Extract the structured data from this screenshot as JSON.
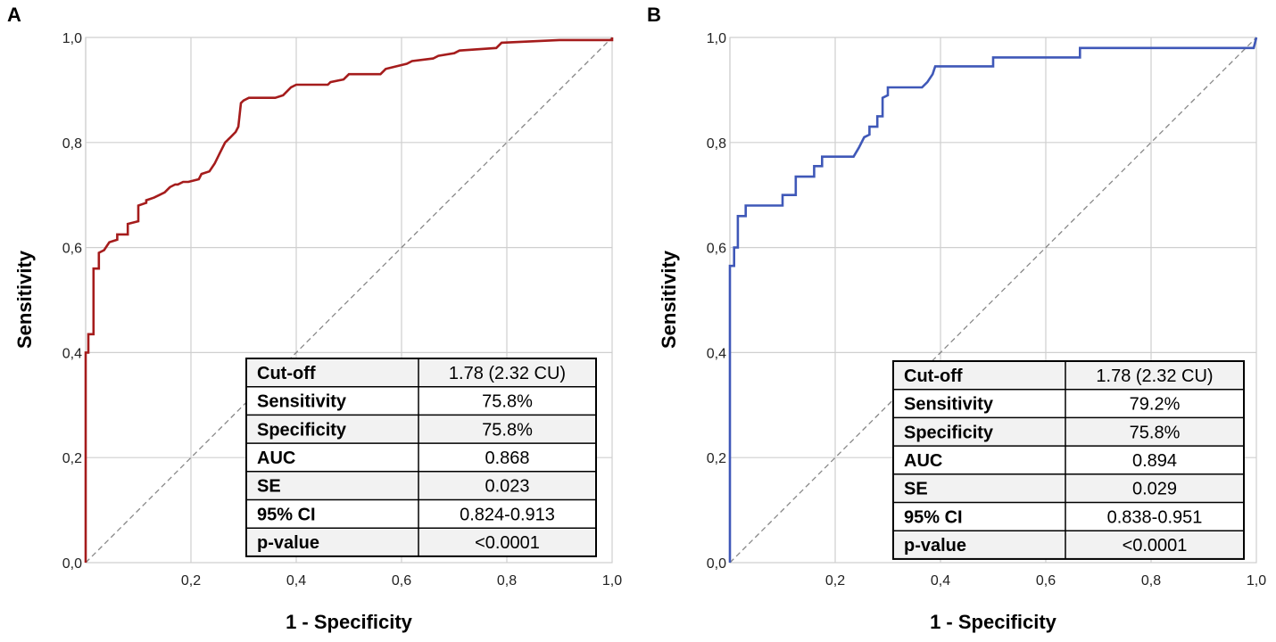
{
  "chart_data": [
    {
      "panel_label": "A",
      "type": "line",
      "xlabel": "1 - Specificity",
      "ylabel": "Sensitivity",
      "xlim": [
        0,
        1
      ],
      "ylim": [
        0,
        1
      ],
      "x_ticks": [
        "0,2",
        "0,4",
        "0,6",
        "0,8",
        "1,0"
      ],
      "y_ticks": [
        "0,0",
        "0,2",
        "0,4",
        "0,6",
        "0,8",
        "1,0"
      ],
      "grid": true,
      "reference_line": {
        "name": "reference",
        "style": "dashed",
        "color": "#888888",
        "x": [
          0,
          1
        ],
        "y": [
          0,
          1
        ]
      },
      "series": [
        {
          "name": "ROC curve",
          "color": "#a51c1c",
          "x": [
            0,
            0,
            0.005,
            0.005,
            0.015,
            0.015,
            0.025,
            0.025,
            0.035,
            0.045,
            0.06,
            0.06,
            0.08,
            0.08,
            0.1,
            0.1,
            0.115,
            0.115,
            0.13,
            0.14,
            0.15,
            0.16,
            0.17,
            0.175,
            0.185,
            0.195,
            0.215,
            0.22,
            0.235,
            0.245,
            0.255,
            0.265,
            0.275,
            0.285,
            0.29,
            0.295,
            0.3,
            0.31,
            0.33,
            0.36,
            0.375,
            0.39,
            0.4,
            0.46,
            0.465,
            0.49,
            0.5,
            0.56,
            0.57,
            0.61,
            0.62,
            0.66,
            0.67,
            0.7,
            0.71,
            0.78,
            0.79,
            0.9,
            1.0,
            1.0
          ],
          "y": [
            0,
            0.4,
            0.4,
            0.435,
            0.435,
            0.56,
            0.56,
            0.59,
            0.595,
            0.61,
            0.615,
            0.625,
            0.625,
            0.645,
            0.65,
            0.68,
            0.685,
            0.69,
            0.695,
            0.7,
            0.705,
            0.715,
            0.72,
            0.72,
            0.725,
            0.725,
            0.73,
            0.74,
            0.745,
            0.76,
            0.78,
            0.8,
            0.81,
            0.82,
            0.83,
            0.875,
            0.88,
            0.885,
            0.885,
            0.885,
            0.89,
            0.905,
            0.91,
            0.91,
            0.915,
            0.92,
            0.93,
            0.93,
            0.94,
            0.95,
            0.955,
            0.96,
            0.965,
            0.97,
            0.975,
            0.98,
            0.99,
            0.995,
            0.995,
            1.0
          ]
        }
      ],
      "stats_table": [
        {
          "label": "Cut-off",
          "value": "1.78 (2.32 CU)"
        },
        {
          "label": "Sensitivity",
          "value": "75.8%"
        },
        {
          "label": "Specificity",
          "value": "75.8%"
        },
        {
          "label": "AUC",
          "value": "0.868"
        },
        {
          "label": "SE",
          "value": "0.023"
        },
        {
          "label": "95% CI",
          "value": "0.824-0.913"
        },
        {
          "label": "p-value",
          "value": "<0.0001"
        }
      ]
    },
    {
      "panel_label": "B",
      "type": "line",
      "xlabel": "1 - Specificity",
      "ylabel": "Sensitivity",
      "xlim": [
        0,
        1
      ],
      "ylim": [
        0,
        1
      ],
      "x_ticks": [
        "0,2",
        "0,4",
        "0,6",
        "0,8",
        "1,0"
      ],
      "y_ticks": [
        "0,0",
        "0,2",
        "0,4",
        "0,6",
        "0,8",
        "1,0"
      ],
      "grid": true,
      "reference_line": {
        "name": "reference",
        "style": "dashed",
        "color": "#888888",
        "x": [
          0,
          1
        ],
        "y": [
          0,
          1
        ]
      },
      "series": [
        {
          "name": "ROC curve",
          "color": "#3f58b8",
          "x": [
            0,
            0,
            0.008,
            0.008,
            0.015,
            0.015,
            0.03,
            0.03,
            0.1,
            0.1,
            0.125,
            0.125,
            0.16,
            0.16,
            0.175,
            0.175,
            0.235,
            0.245,
            0.255,
            0.265,
            0.265,
            0.28,
            0.28,
            0.29,
            0.29,
            0.3,
            0.3,
            0.365,
            0.375,
            0.385,
            0.39,
            0.5,
            0.5,
            0.665,
            0.665,
            0.995,
            1.0
          ],
          "y": [
            0,
            0.565,
            0.565,
            0.6,
            0.6,
            0.66,
            0.66,
            0.68,
            0.68,
            0.7,
            0.7,
            0.735,
            0.735,
            0.755,
            0.755,
            0.773,
            0.773,
            0.79,
            0.81,
            0.815,
            0.83,
            0.83,
            0.85,
            0.85,
            0.885,
            0.89,
            0.905,
            0.905,
            0.915,
            0.93,
            0.945,
            0.945,
            0.962,
            0.962,
            0.98,
            0.98,
            1.0
          ]
        }
      ],
      "stats_table": [
        {
          "label": "Cut-off",
          "value": "1.78 (2.32 CU)"
        },
        {
          "label": "Sensitivity",
          "value": "79.2%"
        },
        {
          "label": "Specificity",
          "value": "75.8%"
        },
        {
          "label": "AUC",
          "value": "0.894"
        },
        {
          "label": "SE",
          "value": "0.029"
        },
        {
          "label": "95% CI",
          "value": "0.838-0.951"
        },
        {
          "label": "p-value",
          "value": "<0.0001"
        }
      ]
    }
  ]
}
